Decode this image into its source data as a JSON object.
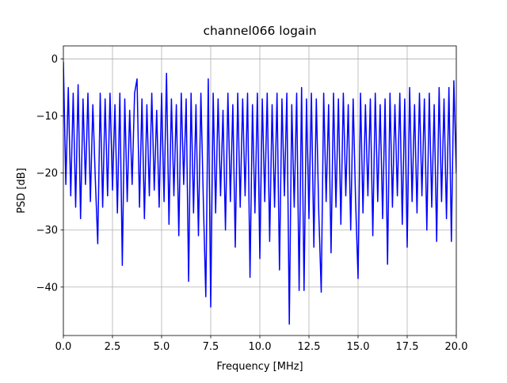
{
  "chart_data": {
    "type": "line",
    "title": "channel066 logain",
    "xlabel": "Frequency [MHz]",
    "ylabel": "PSD [dB]",
    "color": "#0000ff",
    "grid": true,
    "xlim": [
      0,
      20
    ],
    "ylim": [
      -48.5,
      2.3
    ],
    "xticks": [
      {
        "value": 0,
        "label": "0.0"
      },
      {
        "value": 2.5,
        "label": "2.5"
      },
      {
        "value": 5,
        "label": "5.0"
      },
      {
        "value": 7.5,
        "label": "7.5"
      },
      {
        "value": 10,
        "label": "10.0"
      },
      {
        "value": 12.5,
        "label": "12.5"
      },
      {
        "value": 15,
        "label": "15.0"
      },
      {
        "value": 17.5,
        "label": "17.5"
      },
      {
        "value": 20,
        "label": "20.0"
      }
    ],
    "yticks": [
      {
        "value": -40,
        "label": "−40"
      },
      {
        "value": -30,
        "label": "−30"
      },
      {
        "value": -20,
        "label": "−20"
      },
      {
        "value": -10,
        "label": "−10"
      },
      0
    ],
    "x": [
      0,
      0.125,
      0.25,
      0.375,
      0.5,
      0.625,
      0.75,
      0.875,
      1,
      1.125,
      1.25,
      1.375,
      1.5,
      1.625,
      1.75,
      1.875,
      2,
      2.125,
      2.25,
      2.375,
      2.5,
      2.625,
      2.75,
      2.875,
      3,
      3.125,
      3.25,
      3.375,
      3.5,
      3.625,
      3.75,
      3.875,
      4,
      4.125,
      4.25,
      4.375,
      4.5,
      4.625,
      4.75,
      4.875,
      5,
      5.125,
      5.25,
      5.375,
      5.5,
      5.625,
      5.75,
      5.875,
      6,
      6.125,
      6.25,
      6.375,
      6.5,
      6.625,
      6.75,
      6.875,
      7,
      7.125,
      7.25,
      7.375,
      7.5,
      7.625,
      7.75,
      7.875,
      8,
      8.125,
      8.25,
      8.375,
      8.5,
      8.625,
      8.75,
      8.875,
      9,
      9.125,
      9.25,
      9.375,
      9.5,
      9.625,
      9.75,
      9.875,
      10,
      10.125,
      10.25,
      10.375,
      10.5,
      10.625,
      10.75,
      10.875,
      11,
      11.125,
      11.25,
      11.375,
      11.5,
      11.625,
      11.75,
      11.875,
      12,
      12.125,
      12.25,
      12.375,
      12.5,
      12.625,
      12.75,
      12.875,
      13,
      13.125,
      13.25,
      13.375,
      13.5,
      13.625,
      13.75,
      13.875,
      14,
      14.125,
      14.25,
      14.375,
      14.5,
      14.625,
      14.75,
      14.875,
      15,
      15.125,
      15.25,
      15.375,
      15.5,
      15.625,
      15.75,
      15.875,
      16,
      16.125,
      16.25,
      16.375,
      16.5,
      16.625,
      16.75,
      16.875,
      17,
      17.125,
      17.25,
      17.375,
      17.5,
      17.625,
      17.75,
      17.875,
      18,
      18.125,
      18.25,
      18.375,
      18.5,
      18.625,
      18.75,
      18.875,
      19,
      19.125,
      19.25,
      19.375,
      19.5,
      19.625,
      19.75,
      19.875,
      20
    ],
    "values": [
      -0.5,
      -22,
      -5,
      -24,
      -6,
      -26,
      -4.5,
      -28,
      -7,
      -22,
      -6,
      -25,
      -8,
      -21,
      -32.4,
      -6,
      -26,
      -7,
      -24,
      -6,
      -23,
      -8,
      -27,
      -6,
      -36.2,
      -7,
      -25,
      -9,
      -22,
      -6,
      -3.5,
      -26,
      -7,
      -28,
      -8,
      -24,
      -6,
      -23,
      -9,
      -26,
      -6,
      -25,
      -2.5,
      -29,
      -7,
      -24,
      -8,
      -31,
      -6,
      -22,
      -7,
      -39,
      -6,
      -27,
      -8,
      -31,
      -6,
      -25,
      -41.7,
      -3.5,
      -43.5,
      -6,
      -27,
      -7,
      -24,
      -9,
      -30,
      -6,
      -25,
      -8,
      -33,
      -6,
      -26,
      -7,
      -24,
      -6,
      -38.3,
      -8,
      -27,
      -6,
      -35,
      -7,
      -25,
      -6,
      -32,
      -8,
      -26,
      -6,
      -37,
      -7,
      -24,
      -6,
      -46.5,
      -8,
      -26,
      -6,
      -40.6,
      -5,
      -40.6,
      -7,
      -28,
      -6,
      -33,
      -7,
      -27,
      -40.9,
      -6,
      -25,
      -8,
      -34,
      -6,
      -26,
      -7,
      -29,
      -6,
      -24,
      -8,
      -30,
      -7,
      -25,
      -38.5,
      -6,
      -27,
      -8,
      -24,
      -7,
      -31,
      -6,
      -25,
      -8,
      -28,
      -7,
      -36,
      -6,
      -26,
      -8,
      -24,
      -6,
      -29,
      -7,
      -33,
      -5,
      -25,
      -8,
      -27,
      -6,
      -24,
      -7,
      -30,
      -6,
      -26,
      -8,
      -32,
      -5,
      -25,
      -7,
      -28,
      -5,
      -32,
      -3.8,
      -20
    ]
  }
}
